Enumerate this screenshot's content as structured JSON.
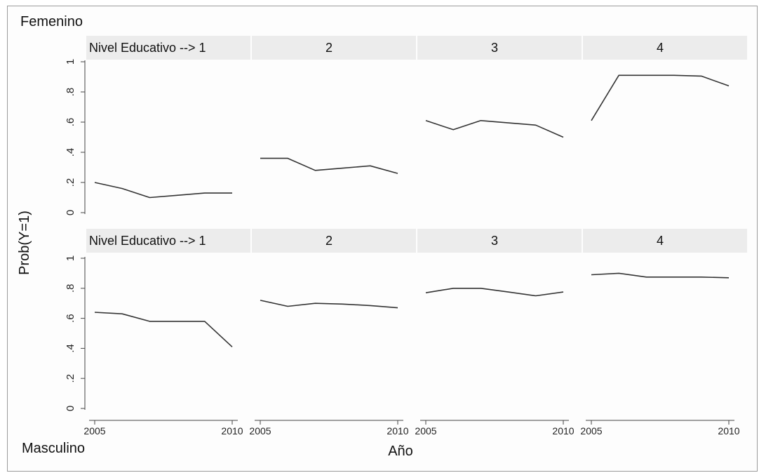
{
  "chart_data": {
    "type": "line",
    "top_label": "Femenino",
    "bottom_label": "Masculino",
    "xlabel": "Año",
    "ylabel": "Prob(Y=1)",
    "x": [
      2005,
      2006,
      2007,
      2008,
      2009,
      2010
    ],
    "xticks": [
      "2005",
      "2010"
    ],
    "yticks": [
      "0",
      ".2",
      ".4",
      ".6",
      ".8",
      "1"
    ],
    "ylim": [
      0,
      1
    ],
    "panel_titles": [
      "Nivel Educativo --> 1",
      "2",
      "3",
      "4"
    ],
    "rows": [
      {
        "name": "Femenino",
        "panels": [
          {
            "title": "Nivel Educativo --> 1",
            "values": [
              0.2,
              0.16,
              0.1,
              0.115,
              0.13,
              0.13
            ]
          },
          {
            "title": "2",
            "values": [
              0.36,
              0.36,
              0.28,
              0.295,
              0.31,
              0.26
            ]
          },
          {
            "title": "3",
            "values": [
              0.61,
              0.55,
              0.61,
              0.595,
              0.58,
              0.5
            ]
          },
          {
            "title": "4",
            "values": [
              0.61,
              0.91,
              0.91,
              0.91,
              0.905,
              0.84
            ]
          }
        ]
      },
      {
        "name": "Masculino",
        "panels": [
          {
            "title": "Nivel Educativo --> 1",
            "values": [
              0.64,
              0.63,
              0.58,
              0.58,
              0.58,
              0.41
            ]
          },
          {
            "title": "2",
            "values": [
              0.72,
              0.68,
              0.7,
              0.695,
              0.685,
              0.67
            ]
          },
          {
            "title": "3",
            "values": [
              0.77,
              0.8,
              0.8,
              0.775,
              0.75,
              0.775
            ]
          },
          {
            "title": "4",
            "values": [
              0.89,
              0.9,
              0.875,
              0.875,
              0.875,
              0.87
            ]
          }
        ]
      }
    ],
    "grid": false
  }
}
